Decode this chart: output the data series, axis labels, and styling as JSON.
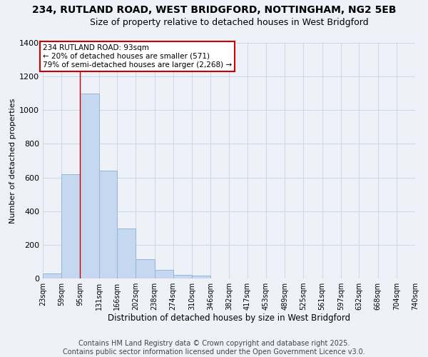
{
  "title": "234, RUTLAND ROAD, WEST BRIDGFORD, NOTTINGHAM, NG2 5EB",
  "subtitle": "Size of property relative to detached houses in West Bridgford",
  "xlabel": "Distribution of detached houses by size in West Bridgford",
  "ylabel": "Number of detached properties",
  "bar_color": "#c5d8ef",
  "bar_edge_color": "#8fb8d8",
  "bins": [
    23,
    59,
    95,
    131,
    166,
    202,
    238,
    274,
    310,
    346,
    382,
    417,
    453,
    489,
    525,
    561,
    597,
    632,
    668,
    704,
    740
  ],
  "counts": [
    30,
    620,
    1100,
    640,
    295,
    115,
    50,
    20,
    15,
    0,
    0,
    0,
    0,
    0,
    0,
    0,
    0,
    0,
    0,
    0
  ],
  "tick_labels": [
    "23sqm",
    "59sqm",
    "95sqm",
    "131sqm",
    "166sqm",
    "202sqm",
    "238sqm",
    "274sqm",
    "310sqm",
    "346sqm",
    "382sqm",
    "417sqm",
    "453sqm",
    "489sqm",
    "525sqm",
    "561sqm",
    "597sqm",
    "632sqm",
    "668sqm",
    "704sqm",
    "740sqm"
  ],
  "ylim": [
    0,
    1400
  ],
  "yticks": [
    0,
    200,
    400,
    600,
    800,
    1000,
    1200,
    1400
  ],
  "vline_x": 95,
  "vline_color": "#cc0000",
  "annotation_title": "234 RUTLAND ROAD: 93sqm",
  "annotation_line1": "← 20% of detached houses are smaller (571)",
  "annotation_line2": "79% of semi-detached houses are larger (2,268) →",
  "annotation_box_color": "#cc0000",
  "footer_line1": "Contains HM Land Registry data © Crown copyright and database right 2025.",
  "footer_line2": "Contains public sector information licensed under the Open Government Licence v3.0.",
  "background_color": "#eef2f8",
  "grid_color": "#d0d8e8",
  "title_fontsize": 10,
  "subtitle_fontsize": 9,
  "xlabel_fontsize": 8.5,
  "ylabel_fontsize": 8,
  "tick_fontsize": 7,
  "footer_fontsize": 7
}
